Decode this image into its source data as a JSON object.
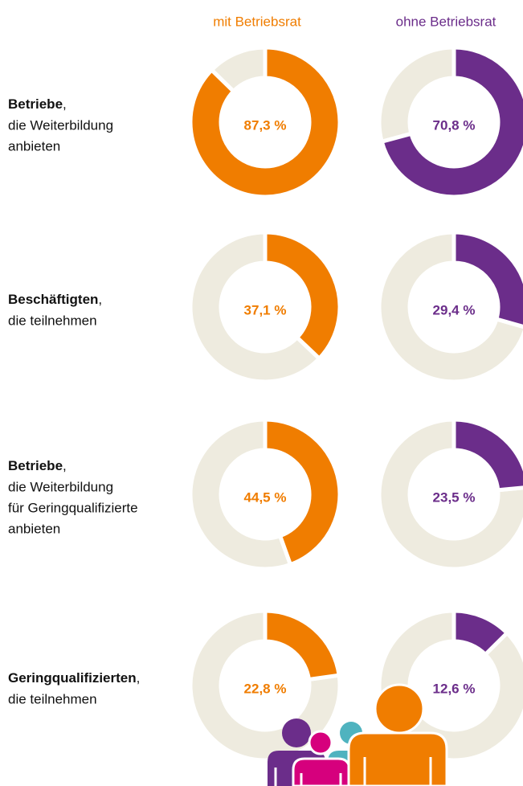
{
  "chart_data": {
    "type": "donut",
    "categories": [
      {
        "bold": "Betriebe",
        "suffix": ",",
        "lines": [
          "die Weiterbildung",
          "anbieten"
        ]
      },
      {
        "bold": "Beschäftigten",
        "suffix": ",",
        "lines": [
          "die teilnehmen"
        ]
      },
      {
        "bold": "Betriebe",
        "suffix": ",",
        "lines": [
          "die Weiterbildung",
          "für Geringqualifizierte",
          "anbieten"
        ]
      },
      {
        "bold": "Geringqualifizierten",
        "suffix": ",",
        "lines": [
          "die teilnehmen"
        ]
      }
    ],
    "series": [
      {
        "name": "mit Betriebsrat",
        "color": "#f07d00",
        "values": [
          87.3,
          37.1,
          44.5,
          22.8
        ],
        "value_labels": [
          "87,3 %",
          "37,1 %",
          "44,5 %",
          "22,8 %"
        ]
      },
      {
        "name": "ohne Betriebsrat",
        "color": "#6b2d8a",
        "values": [
          70.8,
          29.4,
          23.5,
          12.6
        ],
        "value_labels": [
          "70,8 %",
          "29,4 %",
          "23,5 %",
          "12,6 %"
        ]
      }
    ],
    "ylim": [
      0,
      100
    ],
    "track_color": "#eeebdf"
  }
}
